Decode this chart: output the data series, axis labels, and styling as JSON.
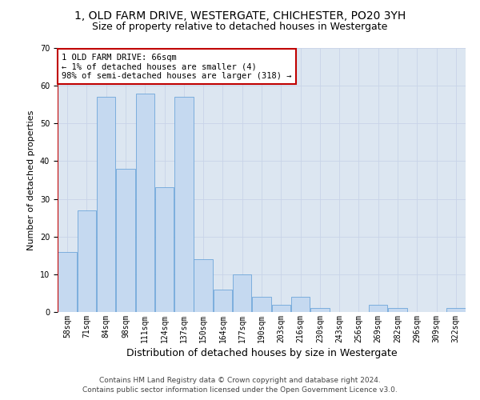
{
  "title1": "1, OLD FARM DRIVE, WESTERGATE, CHICHESTER, PO20 3YH",
  "title2": "Size of property relative to detached houses in Westergate",
  "xlabel": "Distribution of detached houses by size in Westergate",
  "ylabel": "Number of detached properties",
  "categories": [
    "58sqm",
    "71sqm",
    "84sqm",
    "98sqm",
    "111sqm",
    "124sqm",
    "137sqm",
    "150sqm",
    "164sqm",
    "177sqm",
    "190sqm",
    "203sqm",
    "216sqm",
    "230sqm",
    "243sqm",
    "256sqm",
    "269sqm",
    "282sqm",
    "296sqm",
    "309sqm",
    "322sqm"
  ],
  "values": [
    16,
    27,
    57,
    38,
    58,
    33,
    57,
    14,
    6,
    10,
    4,
    2,
    4,
    1,
    0,
    0,
    2,
    1,
    0,
    0,
    1
  ],
  "bar_color": "#c5d9f0",
  "bar_edge_color": "#5b9bd5",
  "vline_color": "#c00000",
  "annotation_text": "1 OLD FARM DRIVE: 66sqm\n← 1% of detached houses are smaller (4)\n98% of semi-detached houses are larger (318) →",
  "annotation_box_color": "white",
  "annotation_box_edgecolor": "#c00000",
  "ylim": [
    0,
    70
  ],
  "yticks": [
    0,
    10,
    20,
    30,
    40,
    50,
    60,
    70
  ],
  "grid_color": "#c8d4e8",
  "background_color": "#dce6f1",
  "footer1": "Contains HM Land Registry data © Crown copyright and database right 2024.",
  "footer2": "Contains public sector information licensed under the Open Government Licence v3.0.",
  "title1_fontsize": 10,
  "title2_fontsize": 9,
  "xlabel_fontsize": 9,
  "ylabel_fontsize": 8,
  "tick_fontsize": 7,
  "annotation_fontsize": 7.5,
  "footer_fontsize": 6.5
}
